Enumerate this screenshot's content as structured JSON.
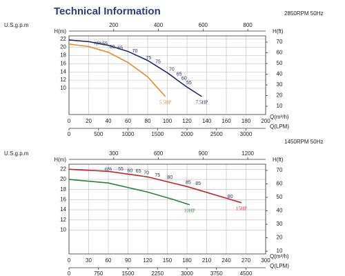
{
  "title": "Technical Information",
  "chart_data": [
    {
      "type": "line",
      "subtitle": "2850RPM 50Hz",
      "xlabel": "Q(m³/h)",
      "xlim": [
        0,
        200
      ],
      "xticks": [
        0,
        20,
        40,
        60,
        80,
        100,
        120,
        140,
        160,
        180,
        200
      ],
      "x2label": "Q(LPM)",
      "x2lim": [
        0,
        3333
      ],
      "x2ticks": [
        0,
        500,
        1000,
        1500,
        2000,
        2500,
        3000
      ],
      "x3label": "U.S.g.p.m",
      "x3lim": [
        0,
        880
      ],
      "x3ticks": [
        200,
        400,
        600,
        800
      ],
      "ylabel": "H(m)",
      "ylim": [
        3.6,
        22.8
      ],
      "yticks": [
        10,
        12,
        14,
        16,
        18,
        20,
        22
      ],
      "y2label": "H(ft)",
      "y2lim": [
        2.3,
        75.8
      ],
      "y2ticks": [
        10,
        20,
        30,
        40,
        50,
        60,
        70
      ],
      "grid": true,
      "series": [
        {
          "name": "5.5HP",
          "color": "#e8892b",
          "x": [
            0,
            20,
            40,
            60,
            80,
            98
          ],
          "values": [
            20.8,
            20.2,
            18.8,
            16.3,
            12.8,
            8
          ]
        },
        {
          "name": "7.5HP",
          "color": "#1f2a5c",
          "x": [
            0,
            20,
            40,
            60,
            80,
            100,
            120,
            135
          ],
          "values": [
            21.8,
            21.4,
            20.5,
            19,
            16.8,
            13.8,
            10.3,
            8
          ]
        }
      ],
      "annotations": [
        {
          "text": "η%",
          "x": 29.5,
          "y": 21
        },
        {
          "text": "55",
          "x": 36.5,
          "y": 20.8
        },
        {
          "text": "60",
          "x": 44,
          "y": 20.1
        },
        {
          "text": "65",
          "x": 52,
          "y": 19.8
        },
        {
          "text": "70",
          "x": 67,
          "y": 19.1
        },
        {
          "text": "75",
          "x": 81,
          "y": 17.4
        },
        {
          "text": "75",
          "x": 90.5,
          "y": 16.5
        },
        {
          "text": "70",
          "x": 104.5,
          "y": 14.6
        },
        {
          "text": "65",
          "x": 112,
          "y": 13.4
        },
        {
          "text": "60",
          "x": 117,
          "y": 12.4
        },
        {
          "text": "55",
          "x": 122,
          "y": 11.3
        }
      ]
    },
    {
      "type": "line",
      "subtitle": "1450RPM 50Hz",
      "xlabel": "Q(m³/h)",
      "xlim": [
        0,
        300
      ],
      "xticks": [
        0,
        30,
        60,
        90,
        120,
        150,
        180,
        210,
        240,
        270,
        300
      ],
      "x2label": "Q(LPM)",
      "x2lim": [
        0,
        5000
      ],
      "x2ticks": [
        0,
        750,
        1500,
        2250,
        3000,
        3750,
        4500
      ],
      "x3label": "U.S.g.p.m",
      "x3lim": [
        0,
        1320
      ],
      "x3ticks": [
        300,
        600,
        900,
        1200
      ],
      "ylabel": "H(m)",
      "ylim": [
        5.3,
        23
      ],
      "yticks": [
        10,
        12,
        14,
        16,
        18,
        20,
        22
      ],
      "y2label": "H(ft)",
      "y2lim": [
        8,
        74.6
      ],
      "y2ticks": [
        10,
        20,
        30,
        40,
        50,
        60,
        70
      ],
      "grid": true,
      "series": [
        {
          "name": "15HP",
          "color": "#c8202a",
          "x": [
            0,
            60,
            120,
            180,
            240,
            263
          ],
          "values": [
            22,
            21.6,
            20.5,
            18.6,
            16.3,
            15.4
          ]
        },
        {
          "name": "10HP",
          "color": "#2e7d3a",
          "x": [
            0,
            60,
            120,
            160,
            184
          ],
          "values": [
            20,
            19.3,
            17.5,
            16,
            15
          ]
        }
      ],
      "annotations": [
        {
          "text": "η%",
          "x": 60,
          "y": 22
        },
        {
          "text": "55",
          "x": 79,
          "y": 22
        },
        {
          "text": "60",
          "x": 93,
          "y": 21.7
        },
        {
          "text": "65",
          "x": 106,
          "y": 21.6
        },
        {
          "text": "70",
          "x": 118,
          "y": 21.3
        },
        {
          "text": "75",
          "x": 135,
          "y": 20.8
        },
        {
          "text": "80",
          "x": 154,
          "y": 20.4
        },
        {
          "text": "85",
          "x": 182,
          "y": 19.4
        },
        {
          "text": "85",
          "x": 197,
          "y": 19.2
        },
        {
          "text": "80",
          "x": 246,
          "y": 16.6
        }
      ]
    }
  ]
}
